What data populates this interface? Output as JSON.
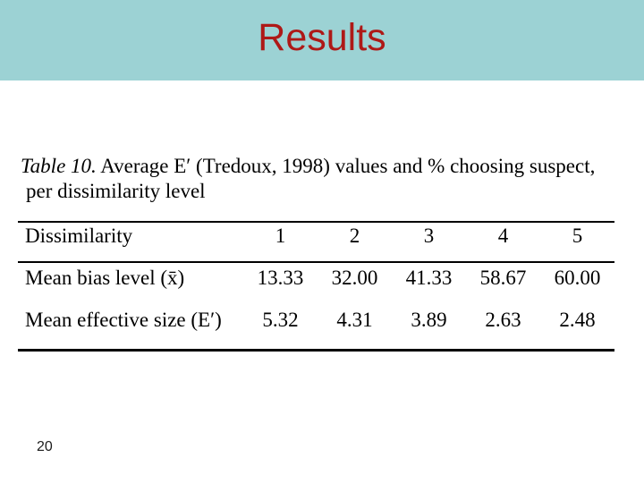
{
  "slide": {
    "title": "Results",
    "page_number": "20"
  },
  "caption": {
    "label": "Table 10.",
    "rest": "Average E′ (Tredoux, 1998) values and % choosing suspect,",
    "line2": "per dissimilarity level"
  },
  "table": {
    "columns": [
      "Dissimilarity",
      "1",
      "2",
      "3",
      "4",
      "5"
    ],
    "rows": [
      {
        "label": "Mean bias level (x̄)",
        "values": [
          "13.33",
          "32.00",
          "41.33",
          "58.67",
          "60.00"
        ]
      },
      {
        "label": "Mean effective size (E′)",
        "values": [
          "5.32",
          "4.31",
          "3.89",
          "2.63",
          "2.48"
        ]
      }
    ]
  },
  "chart_data": {
    "type": "table",
    "title": "Table 10. Average E′ (Tredoux, 1998) values and % choosing suspect, per dissimilarity level",
    "categories": [
      "1",
      "2",
      "3",
      "4",
      "5"
    ],
    "series": [
      {
        "name": "Mean bias level (x̄)",
        "values": [
          13.33,
          32.0,
          41.33,
          58.67,
          60.0
        ]
      },
      {
        "name": "Mean effective size (E′)",
        "values": [
          5.32,
          4.31,
          3.89,
          2.63,
          2.48
        ]
      }
    ]
  },
  "colors": {
    "header_band": "#9cd2d4",
    "title_text": "#ae1917",
    "body_text": "#000000",
    "background": "#ffffff"
  }
}
